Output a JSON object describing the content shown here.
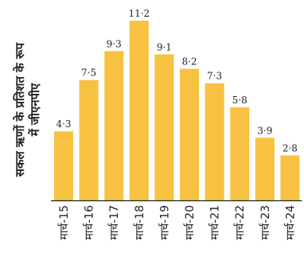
{
  "chart_data": {
    "type": "bar",
    "categories": [
      "मार्च-15",
      "मार्च-16",
      "मार्च-17",
      "मार्च-18",
      "मार्च-19",
      "मार्च-20",
      "मार्च-21",
      "मार्च-22",
      "मार्च-23",
      "मार्च-24"
    ],
    "values": [
      4.3,
      7.5,
      9.3,
      11.2,
      9.1,
      8.2,
      7.3,
      5.8,
      3.9,
      2.8
    ],
    "value_labels": [
      "4·3",
      "7·5",
      "9·3",
      "11·2",
      "9·1",
      "8·2",
      "7·3",
      "5·8",
      "3·9",
      "2·8"
    ],
    "title": "",
    "xlabel": "",
    "ylabel_lines": [
      "सकल ऋणों के प्रतिशत के रूप",
      "में जीएनपीए"
    ],
    "ylim": [
      0,
      11.2
    ],
    "grid": false,
    "legend": "none",
    "colors": {
      "bar": "#F7C242",
      "axis": "#222222",
      "text": "#222222"
    }
  }
}
